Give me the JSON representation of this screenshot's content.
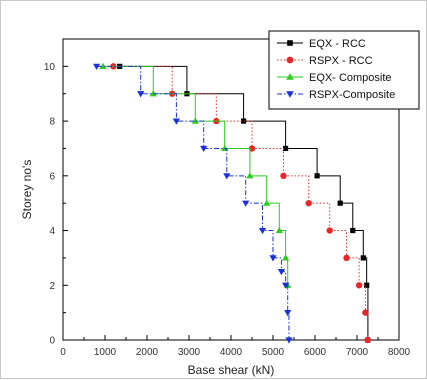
{
  "chart_data": {
    "type": "line",
    "title": "",
    "xlabel": "Base shear (kN)",
    "ylabel": "Storey no's",
    "xlim": [
      0,
      8000
    ],
    "ylim": [
      0,
      11
    ],
    "xticks": [
      "0",
      "1000",
      "2000",
      "3000",
      "4000",
      "5000",
      "6000",
      "7000",
      "8000"
    ],
    "yticks": [
      "0",
      "2",
      "4",
      "6",
      "8",
      "10"
    ],
    "step_style": "horizontal segment from each point to the right, then vertical drop to the next point",
    "grid": false,
    "legend_position": "top-right",
    "series": [
      {
        "name": "EQX - RCC",
        "color": "#000000",
        "marker": "square",
        "line": "solid",
        "x": [
          1350,
          2950,
          4300,
          5300,
          6050,
          6600,
          6900,
          7150,
          7230,
          7260
        ],
        "y": [
          10,
          9,
          8,
          7,
          6,
          5,
          4,
          3,
          2,
          0
        ]
      },
      {
        "name": "RSPX - RCC",
        "color": "#e8272a",
        "marker": "circle",
        "line": "dotted",
        "x": [
          1200,
          2600,
          3650,
          4500,
          5250,
          5850,
          6350,
          6750,
          7050,
          7200,
          7250
        ],
        "y": [
          10,
          9,
          8,
          7,
          6,
          5,
          4,
          3,
          2,
          1,
          0
        ]
      },
      {
        "name": "EQX- Composite",
        "color": "#2ecc1f",
        "marker": "triangle-up",
        "line": "solid",
        "x": [
          950,
          2150,
          3150,
          3850,
          4450,
          4850,
          5150,
          5300,
          5350
        ],
        "y": [
          10,
          9,
          8,
          7,
          6,
          5,
          4,
          3,
          2
        ]
      },
      {
        "name": "RSPX-Composite",
        "color": "#1b30d8",
        "marker": "triangle-down",
        "line": "dashdot",
        "x": [
          800,
          1850,
          2700,
          3350,
          3900,
          4350,
          4750,
          5000,
          5200,
          5300,
          5350,
          5380
        ],
        "y": [
          10,
          9,
          8,
          7,
          6,
          5,
          4,
          3,
          2.5,
          2,
          1,
          0
        ]
      }
    ]
  }
}
